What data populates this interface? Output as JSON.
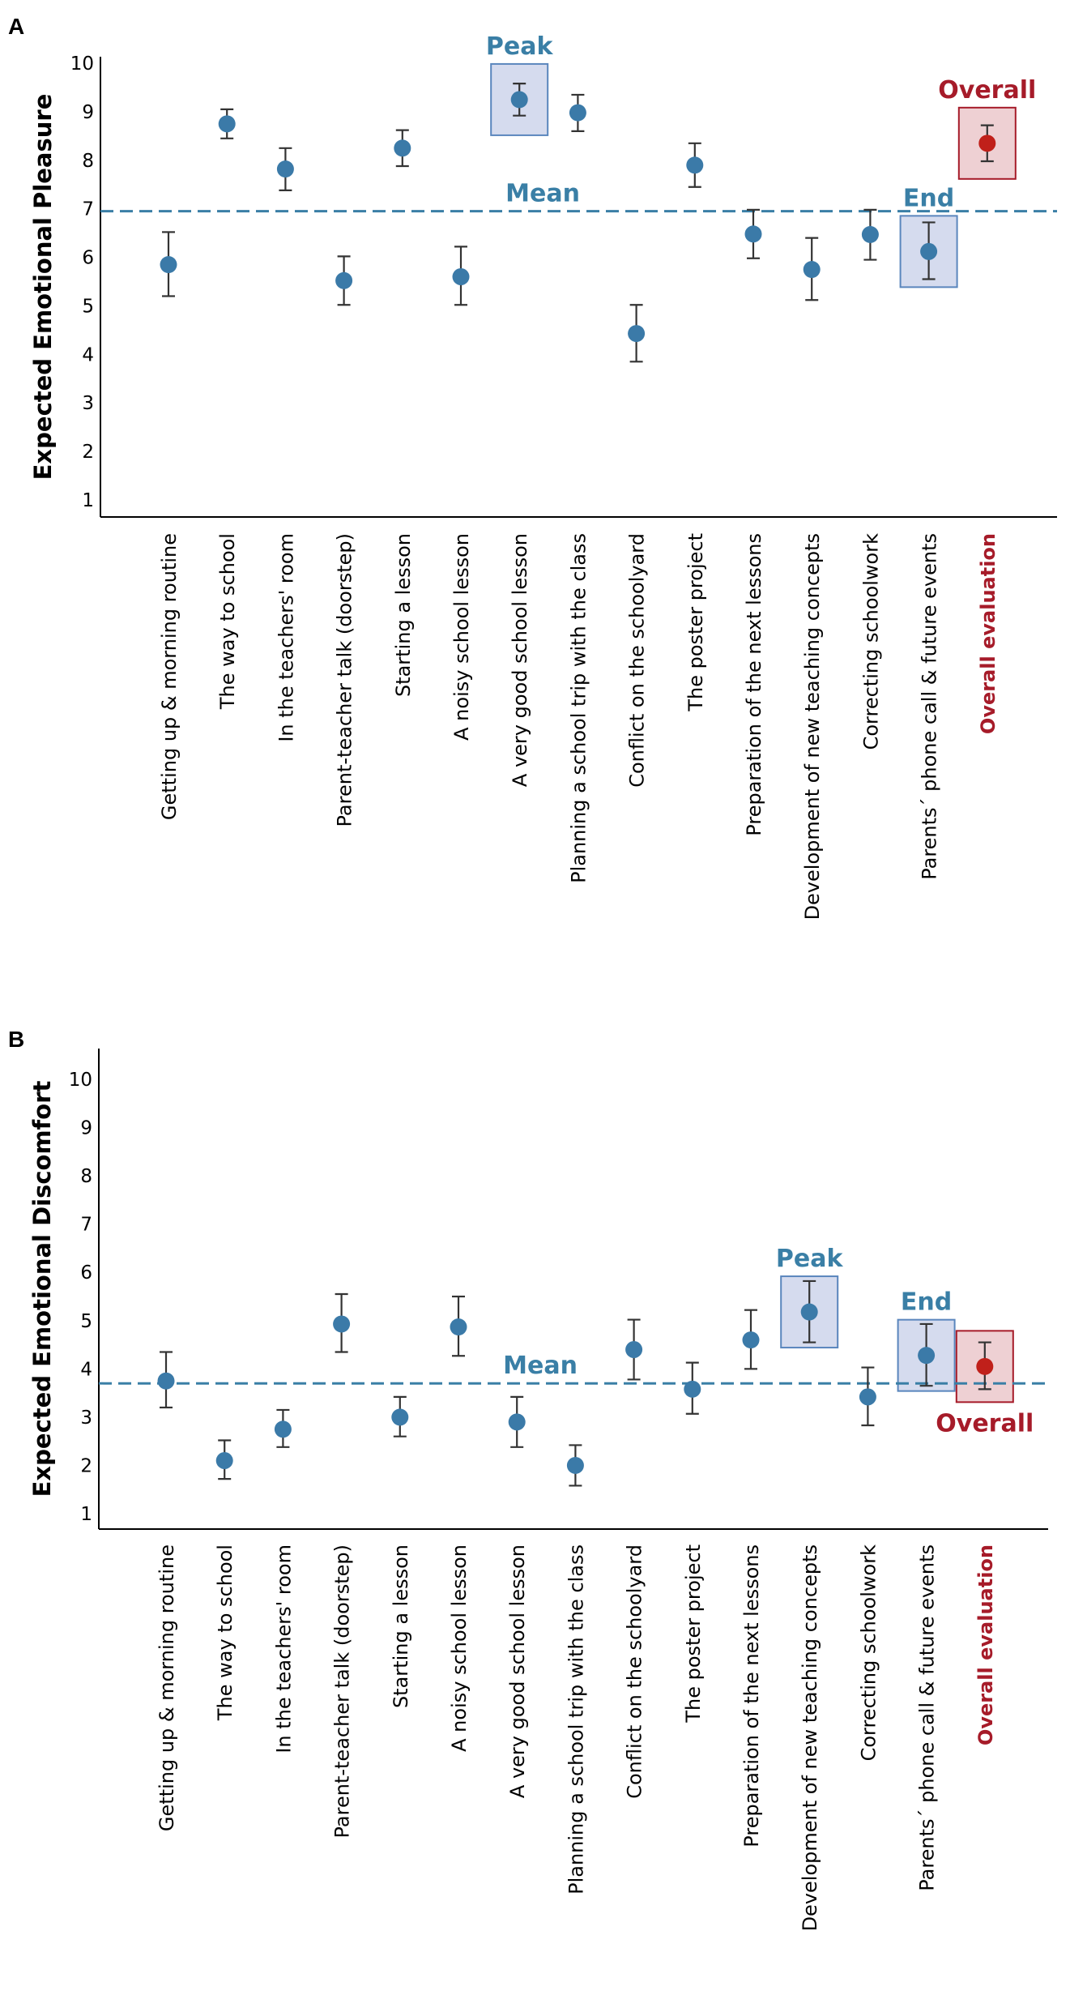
{
  "colors": {
    "point": "#3b7aa8",
    "overall_point": "#c0201a",
    "highlight_fill": "#d5dbee",
    "highlight_stroke": "#5a86bd",
    "overall_fill": "#eed0d3",
    "overall_stroke": "#a61b29",
    "annot_blue": "#3a7fa6",
    "annot_red": "#a61b29"
  },
  "chart_data": [
    {
      "panel": "A",
      "type": "scatter",
      "ylabel": "Expected Emotional Pleasure",
      "ylim": [
        0.6,
        10.6
      ],
      "yticks": [
        1,
        2,
        3,
        4,
        5,
        6,
        7,
        8,
        9,
        10
      ],
      "categories": [
        "Getting up & morning routine",
        "The way to school",
        "In the teachers' room",
        "Parent-teacher talk (doorstep)",
        "Starting a lesson",
        "A noisy school lesson",
        "A very good school lesson",
        "Planning a school trip with the class",
        "Conflict on the schoolyard",
        "The poster project",
        "Preparation of the next lessons",
        "Development of new teaching concepts",
        "Correcting schoolwork",
        "Parents´ phone call & future events",
        "Overall evaluation"
      ],
      "values": [
        5.85,
        8.75,
        7.82,
        5.52,
        8.25,
        5.6,
        9.25,
        8.98,
        4.43,
        7.9,
        6.48,
        5.75,
        6.47,
        6.12,
        8.35
      ],
      "err_low": [
        5.2,
        8.45,
        7.38,
        5.02,
        7.88,
        5.02,
        8.92,
        8.6,
        3.85,
        7.45,
        5.98,
        5.12,
        5.95,
        5.55,
        7.98
      ],
      "err_high": [
        6.52,
        9.05,
        8.25,
        6.02,
        8.62,
        6.22,
        9.58,
        9.35,
        5.02,
        8.35,
        6.98,
        6.4,
        6.98,
        6.72,
        8.72
      ],
      "mean": 6.95,
      "mean_label": "Mean",
      "highlights": [
        {
          "label": "Peak",
          "index": 6,
          "style": "blue",
          "label_pos": "above"
        },
        {
          "label": "End",
          "index": 13,
          "style": "blue",
          "label_pos": "above"
        },
        {
          "label": "Overall",
          "index": 14,
          "style": "red",
          "label_pos": "above"
        }
      ]
    },
    {
      "panel": "B",
      "type": "scatter",
      "ylabel": "Expected Emotional Discomfort",
      "ylim": [
        0.6,
        10.6
      ],
      "yticks": [
        1,
        2,
        3,
        4,
        5,
        6,
        7,
        8,
        9,
        10
      ],
      "categories": [
        "Getting up & morning routine",
        "The way to school",
        "In the teachers' room",
        "Parent-teacher talk (doorstep)",
        "Starting a lesson",
        "A noisy school lesson",
        "A very good school lesson",
        "Planning a school trip with the class",
        "Conflict on the schoolyard",
        "The poster project",
        "Preparation of the next lessons",
        "Development of new teaching concepts",
        "Correcting schoolwork",
        "Parents´ phone call & future events",
        "Overall evaluation"
      ],
      "values": [
        3.75,
        2.1,
        2.75,
        4.93,
        3.0,
        4.87,
        2.9,
        2.0,
        4.4,
        3.58,
        4.6,
        5.18,
        3.42,
        4.28,
        4.05
      ],
      "err_low": [
        3.2,
        1.72,
        2.38,
        4.35,
        2.6,
        4.27,
        2.38,
        1.58,
        3.78,
        3.07,
        4.0,
        4.55,
        2.83,
        3.65,
        3.58
      ],
      "err_high": [
        4.35,
        2.52,
        3.15,
        5.55,
        3.42,
        5.5,
        3.42,
        2.42,
        5.02,
        4.13,
        5.22,
        5.82,
        4.03,
        4.93,
        4.55
      ],
      "mean": 3.7,
      "mean_label": "Mean",
      "highlights": [
        {
          "label": "Peak",
          "index": 11,
          "style": "blue",
          "label_pos": "above"
        },
        {
          "label": "End",
          "index": 13,
          "style": "blue",
          "label_pos": "above"
        },
        {
          "label": "Overall",
          "index": 14,
          "style": "red",
          "label_pos": "below"
        }
      ]
    }
  ]
}
